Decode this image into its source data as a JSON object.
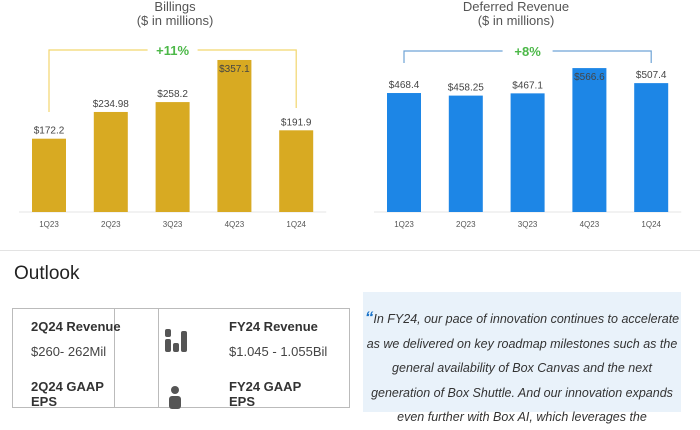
{
  "chart_data": [
    {
      "type": "bar",
      "title": "Billings",
      "subtitle": "($ in millions)",
      "categories": [
        "1Q23",
        "2Q23",
        "3Q23",
        "4Q23",
        "1Q24"
      ],
      "values": [
        172.2,
        234.98,
        258.2,
        357.1,
        191.9
      ],
      "labels": [
        "$172.2",
        "$234.98",
        "$258.2",
        "$357.1",
        "$191.9"
      ],
      "growth": "+11%",
      "color": "#d8aa22"
    },
    {
      "type": "bar",
      "title": "Deferred Revenue",
      "subtitle": "($ in millions)",
      "categories": [
        "1Q23",
        "2Q23",
        "3Q23",
        "4Q23",
        "1Q24"
      ],
      "values": [
        468.4,
        458.25,
        467.1,
        566.6,
        507.4
      ],
      "labels": [
        "$468.4",
        "$458.25",
        "$467.1",
        "$566.6",
        "$507.4"
      ],
      "growth": "+8%",
      "color": "#1d86e6"
    }
  ],
  "outlook": {
    "heading": "Outlook",
    "rows": [
      {
        "left_label": "2Q24 Revenue",
        "left_value": "$260- 262Mil",
        "right_label": "FY24 Revenue",
        "right_value": "$1.045 - 1.055Bil",
        "icon": "coins-icon"
      },
      {
        "left_label": "2Q24 GAAP EPS",
        "right_label": "FY24 GAAP EPS",
        "icon": "person-icon"
      }
    ],
    "quote": "In FY24, our pace of innovation continues to accelerate as we delivered on key roadmap milestones such as the general availability of Box Canvas and the next generation of Box Shuttle. And our innovation expands even further with Box AI, which leverages the"
  }
}
